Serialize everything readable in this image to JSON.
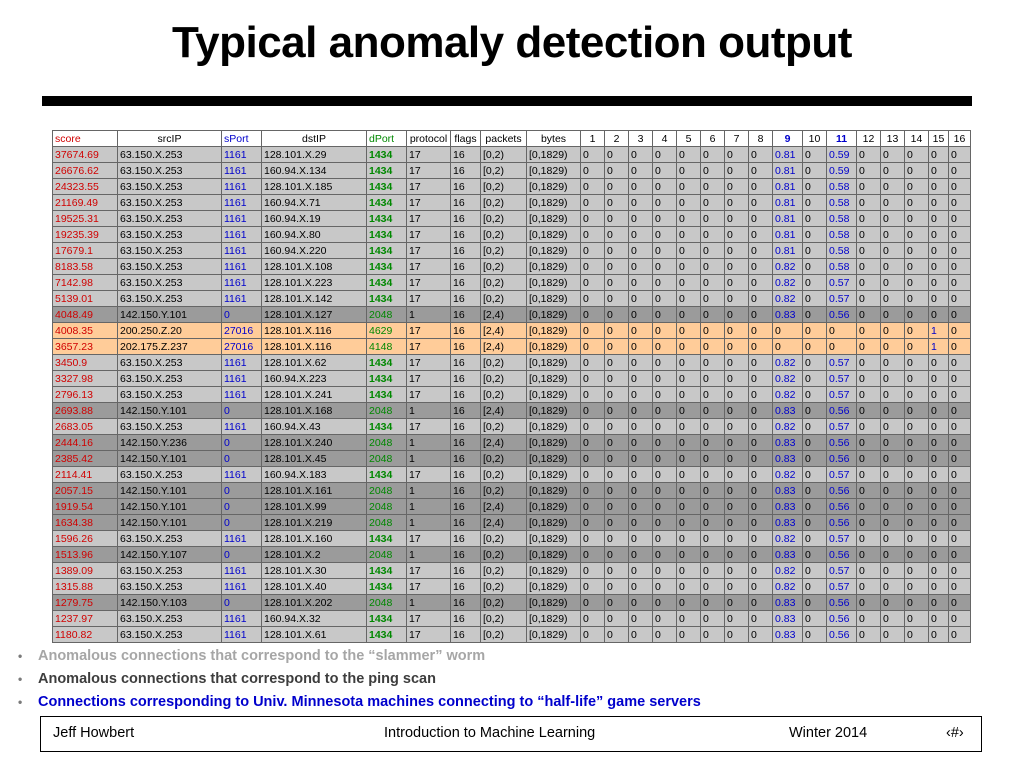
{
  "slide": {
    "title": "Typical anomaly detection output"
  },
  "table": {
    "headers": [
      "score",
      "srcIP",
      "sPort",
      "dstIP",
      "dPort",
      "protocol",
      "flags",
      "packets",
      "bytes",
      "1",
      "2",
      "3",
      "4",
      "5",
      "6",
      "7",
      "8",
      "9",
      "10",
      "11",
      "12",
      "13",
      "14",
      "15",
      "16"
    ],
    "rows": [
      {
        "group": "light",
        "cells": [
          "37674.69",
          "63.150.X.253",
          "1161",
          "128.101.X.29",
          "1434",
          "17",
          "16",
          "[0,2)",
          "[0,1829)",
          "0",
          "0",
          "0",
          "0",
          "0",
          "0",
          "0",
          "0",
          "0.81",
          "0",
          "0.59",
          "0",
          "0",
          "0",
          "0",
          "0"
        ]
      },
      {
        "group": "light",
        "cells": [
          "26676.62",
          "63.150.X.253",
          "1161",
          "160.94.X.134",
          "1434",
          "17",
          "16",
          "[0,2)",
          "[0,1829)",
          "0",
          "0",
          "0",
          "0",
          "0",
          "0",
          "0",
          "0",
          "0.81",
          "0",
          "0.59",
          "0",
          "0",
          "0",
          "0",
          "0"
        ]
      },
      {
        "group": "light",
        "cells": [
          "24323.55",
          "63.150.X.253",
          "1161",
          "128.101.X.185",
          "1434",
          "17",
          "16",
          "[0,2)",
          "[0,1829)",
          "0",
          "0",
          "0",
          "0",
          "0",
          "0",
          "0",
          "0",
          "0.81",
          "0",
          "0.58",
          "0",
          "0",
          "0",
          "0",
          "0"
        ]
      },
      {
        "group": "light",
        "cells": [
          "21169.49",
          "63.150.X.253",
          "1161",
          "160.94.X.71",
          "1434",
          "17",
          "16",
          "[0,2)",
          "[0,1829)",
          "0",
          "0",
          "0",
          "0",
          "0",
          "0",
          "0",
          "0",
          "0.81",
          "0",
          "0.58",
          "0",
          "0",
          "0",
          "0",
          "0"
        ]
      },
      {
        "group": "light",
        "cells": [
          "19525.31",
          "63.150.X.253",
          "1161",
          "160.94.X.19",
          "1434",
          "17",
          "16",
          "[0,2)",
          "[0,1829)",
          "0",
          "0",
          "0",
          "0",
          "0",
          "0",
          "0",
          "0",
          "0.81",
          "0",
          "0.58",
          "0",
          "0",
          "0",
          "0",
          "0"
        ]
      },
      {
        "group": "light",
        "cells": [
          "19235.39",
          "63.150.X.253",
          "1161",
          "160.94.X.80",
          "1434",
          "17",
          "16",
          "[0,2)",
          "[0,1829)",
          "0",
          "0",
          "0",
          "0",
          "0",
          "0",
          "0",
          "0",
          "0.81",
          "0",
          "0.58",
          "0",
          "0",
          "0",
          "0",
          "0"
        ]
      },
      {
        "group": "light",
        "cells": [
          "17679.1",
          "63.150.X.253",
          "1161",
          "160.94.X.220",
          "1434",
          "17",
          "16",
          "[0,2)",
          "[0,1829)",
          "0",
          "0",
          "0",
          "0",
          "0",
          "0",
          "0",
          "0",
          "0.81",
          "0",
          "0.58",
          "0",
          "0",
          "0",
          "0",
          "0"
        ]
      },
      {
        "group": "light",
        "cells": [
          "8183.58",
          "63.150.X.253",
          "1161",
          "128.101.X.108",
          "1434",
          "17",
          "16",
          "[0,2)",
          "[0,1829)",
          "0",
          "0",
          "0",
          "0",
          "0",
          "0",
          "0",
          "0",
          "0.82",
          "0",
          "0.58",
          "0",
          "0",
          "0",
          "0",
          "0"
        ]
      },
      {
        "group": "light",
        "cells": [
          "7142.98",
          "63.150.X.253",
          "1161",
          "128.101.X.223",
          "1434",
          "17",
          "16",
          "[0,2)",
          "[0,1829)",
          "0",
          "0",
          "0",
          "0",
          "0",
          "0",
          "0",
          "0",
          "0.82",
          "0",
          "0.57",
          "0",
          "0",
          "0",
          "0",
          "0"
        ]
      },
      {
        "group": "light",
        "cells": [
          "5139.01",
          "63.150.X.253",
          "1161",
          "128.101.X.142",
          "1434",
          "17",
          "16",
          "[0,2)",
          "[0,1829)",
          "0",
          "0",
          "0",
          "0",
          "0",
          "0",
          "0",
          "0",
          "0.82",
          "0",
          "0.57",
          "0",
          "0",
          "0",
          "0",
          "0"
        ]
      },
      {
        "group": "dark",
        "cells": [
          "4048.49",
          "142.150.Y.101",
          "0",
          "128.101.X.127",
          "2048",
          "1",
          "16",
          "[2,4)",
          "[0,1829)",
          "0",
          "0",
          "0",
          "0",
          "0",
          "0",
          "0",
          "0",
          "0.83",
          "0",
          "0.56",
          "0",
          "0",
          "0",
          "0",
          "0"
        ]
      },
      {
        "group": "orange",
        "cells": [
          "4008.35",
          "200.250.Z.20",
          "27016",
          "128.101.X.116",
          "4629",
          "17",
          "16",
          "[2,4)",
          "[0,1829)",
          "0",
          "0",
          "0",
          "0",
          "0",
          "0",
          "0",
          "0",
          "0",
          "0",
          "0",
          "0",
          "0",
          "0",
          "1",
          "0"
        ]
      },
      {
        "group": "orange",
        "cells": [
          "3657.23",
          "202.175.Z.237",
          "27016",
          "128.101.X.116",
          "4148",
          "17",
          "16",
          "[2,4)",
          "[0,1829)",
          "0",
          "0",
          "0",
          "0",
          "0",
          "0",
          "0",
          "0",
          "0",
          "0",
          "0",
          "0",
          "0",
          "0",
          "1",
          "0"
        ]
      },
      {
        "group": "light",
        "cells": [
          "3450.9",
          "63.150.X.253",
          "1161",
          "128.101.X.62",
          "1434",
          "17",
          "16",
          "[0,2)",
          "[0,1829)",
          "0",
          "0",
          "0",
          "0",
          "0",
          "0",
          "0",
          "0",
          "0.82",
          "0",
          "0.57",
          "0",
          "0",
          "0",
          "0",
          "0"
        ]
      },
      {
        "group": "light",
        "cells": [
          "3327.98",
          "63.150.X.253",
          "1161",
          "160.94.X.223",
          "1434",
          "17",
          "16",
          "[0,2)",
          "[0,1829)",
          "0",
          "0",
          "0",
          "0",
          "0",
          "0",
          "0",
          "0",
          "0.82",
          "0",
          "0.57",
          "0",
          "0",
          "0",
          "0",
          "0"
        ]
      },
      {
        "group": "light",
        "cells": [
          "2796.13",
          "63.150.X.253",
          "1161",
          "128.101.X.241",
          "1434",
          "17",
          "16",
          "[0,2)",
          "[0,1829)",
          "0",
          "0",
          "0",
          "0",
          "0",
          "0",
          "0",
          "0",
          "0.82",
          "0",
          "0.57",
          "0",
          "0",
          "0",
          "0",
          "0"
        ]
      },
      {
        "group": "dark",
        "cells": [
          "2693.88",
          "142.150.Y.101",
          "0",
          "128.101.X.168",
          "2048",
          "1",
          "16",
          "[2,4)",
          "[0,1829)",
          "0",
          "0",
          "0",
          "0",
          "0",
          "0",
          "0",
          "0",
          "0.83",
          "0",
          "0.56",
          "0",
          "0",
          "0",
          "0",
          "0"
        ]
      },
      {
        "group": "light",
        "cells": [
          "2683.05",
          "63.150.X.253",
          "1161",
          "160.94.X.43",
          "1434",
          "17",
          "16",
          "[0,2)",
          "[0,1829)",
          "0",
          "0",
          "0",
          "0",
          "0",
          "0",
          "0",
          "0",
          "0.82",
          "0",
          "0.57",
          "0",
          "0",
          "0",
          "0",
          "0"
        ]
      },
      {
        "group": "dark",
        "cells": [
          "2444.16",
          "142.150.Y.236",
          "0",
          "128.101.X.240",
          "2048",
          "1",
          "16",
          "[2,4)",
          "[0,1829)",
          "0",
          "0",
          "0",
          "0",
          "0",
          "0",
          "0",
          "0",
          "0.83",
          "0",
          "0.56",
          "0",
          "0",
          "0",
          "0",
          "0"
        ]
      },
      {
        "group": "dark",
        "cells": [
          "2385.42",
          "142.150.Y.101",
          "0",
          "128.101.X.45",
          "2048",
          "1",
          "16",
          "[0,2)",
          "[0,1829)",
          "0",
          "0",
          "0",
          "0",
          "0",
          "0",
          "0",
          "0",
          "0.83",
          "0",
          "0.56",
          "0",
          "0",
          "0",
          "0",
          "0"
        ]
      },
      {
        "group": "light",
        "cells": [
          "2114.41",
          "63.150.X.253",
          "1161",
          "160.94.X.183",
          "1434",
          "17",
          "16",
          "[0,2)",
          "[0,1829)",
          "0",
          "0",
          "0",
          "0",
          "0",
          "0",
          "0",
          "0",
          "0.82",
          "0",
          "0.57",
          "0",
          "0",
          "0",
          "0",
          "0"
        ]
      },
      {
        "group": "dark",
        "cells": [
          "2057.15",
          "142.150.Y.101",
          "0",
          "128.101.X.161",
          "2048",
          "1",
          "16",
          "[0,2)",
          "[0,1829)",
          "0",
          "0",
          "0",
          "0",
          "0",
          "0",
          "0",
          "0",
          "0.83",
          "0",
          "0.56",
          "0",
          "0",
          "0",
          "0",
          "0"
        ]
      },
      {
        "group": "dark",
        "cells": [
          "1919.54",
          "142.150.Y.101",
          "0",
          "128.101.X.99",
          "2048",
          "1",
          "16",
          "[2,4)",
          "[0,1829)",
          "0",
          "0",
          "0",
          "0",
          "0",
          "0",
          "0",
          "0",
          "0.83",
          "0",
          "0.56",
          "0",
          "0",
          "0",
          "0",
          "0"
        ]
      },
      {
        "group": "dark",
        "cells": [
          "1634.38",
          "142.150.Y.101",
          "0",
          "128.101.X.219",
          "2048",
          "1",
          "16",
          "[2,4)",
          "[0,1829)",
          "0",
          "0",
          "0",
          "0",
          "0",
          "0",
          "0",
          "0",
          "0.83",
          "0",
          "0.56",
          "0",
          "0",
          "0",
          "0",
          "0"
        ]
      },
      {
        "group": "light",
        "cells": [
          "1596.26",
          "63.150.X.253",
          "1161",
          "128.101.X.160",
          "1434",
          "17",
          "16",
          "[0,2)",
          "[0,1829)",
          "0",
          "0",
          "0",
          "0",
          "0",
          "0",
          "0",
          "0",
          "0.82",
          "0",
          "0.57",
          "0",
          "0",
          "0",
          "0",
          "0"
        ]
      },
      {
        "group": "dark",
        "cells": [
          "1513.96",
          "142.150.Y.107",
          "0",
          "128.101.X.2",
          "2048",
          "1",
          "16",
          "[0,2)",
          "[0,1829)",
          "0",
          "0",
          "0",
          "0",
          "0",
          "0",
          "0",
          "0",
          "0.83",
          "0",
          "0.56",
          "0",
          "0",
          "0",
          "0",
          "0"
        ]
      },
      {
        "group": "light",
        "cells": [
          "1389.09",
          "63.150.X.253",
          "1161",
          "128.101.X.30",
          "1434",
          "17",
          "16",
          "[0,2)",
          "[0,1829)",
          "0",
          "0",
          "0",
          "0",
          "0",
          "0",
          "0",
          "0",
          "0.82",
          "0",
          "0.57",
          "0",
          "0",
          "0",
          "0",
          "0"
        ]
      },
      {
        "group": "light",
        "cells": [
          "1315.88",
          "63.150.X.253",
          "1161",
          "128.101.X.40",
          "1434",
          "17",
          "16",
          "[0,2)",
          "[0,1829)",
          "0",
          "0",
          "0",
          "0",
          "0",
          "0",
          "0",
          "0",
          "0.82",
          "0",
          "0.57",
          "0",
          "0",
          "0",
          "0",
          "0"
        ]
      },
      {
        "group": "dark",
        "cells": [
          "1279.75",
          "142.150.Y.103",
          "0",
          "128.101.X.202",
          "2048",
          "1",
          "16",
          "[0,2)",
          "[0,1829)",
          "0",
          "0",
          "0",
          "0",
          "0",
          "0",
          "0",
          "0",
          "0.83",
          "0",
          "0.56",
          "0",
          "0",
          "0",
          "0",
          "0"
        ]
      },
      {
        "group": "light",
        "cells": [
          "1237.97",
          "63.150.X.253",
          "1161",
          "160.94.X.32",
          "1434",
          "17",
          "16",
          "[0,2)",
          "[0,1829)",
          "0",
          "0",
          "0",
          "0",
          "0",
          "0",
          "0",
          "0",
          "0.83",
          "0",
          "0.56",
          "0",
          "0",
          "0",
          "0",
          "0"
        ]
      },
      {
        "group": "light",
        "cells": [
          "1180.82",
          "63.150.X.253",
          "1161",
          "128.101.X.61",
          "1434",
          "17",
          "16",
          "[0,2)",
          "[0,1829)",
          "0",
          "0",
          "0",
          "0",
          "0",
          "0",
          "0",
          "0",
          "0.83",
          "0",
          "0.56",
          "0",
          "0",
          "0",
          "0",
          "0"
        ]
      }
    ]
  },
  "bullets": [
    "Anomalous connections that correspond to the “slammer” worm",
    "Anomalous connections that correspond to the ping scan",
    "Connections corresponding to Univ. Minnesota machines connecting to “half-life” game servers"
  ],
  "footer": {
    "author": "Jeff Howbert",
    "course": "Introduction to Machine Learning",
    "term": "Winter 2014",
    "page": "‹#›"
  },
  "colors": {
    "slammer_rows": "#c8c8c8",
    "ping_scan_rows": "#9b9b9b",
    "half_life_rows": "#ffcc99",
    "score_text": "#d00000",
    "port_text": "#0000cc",
    "dport_text": "#008800"
  }
}
